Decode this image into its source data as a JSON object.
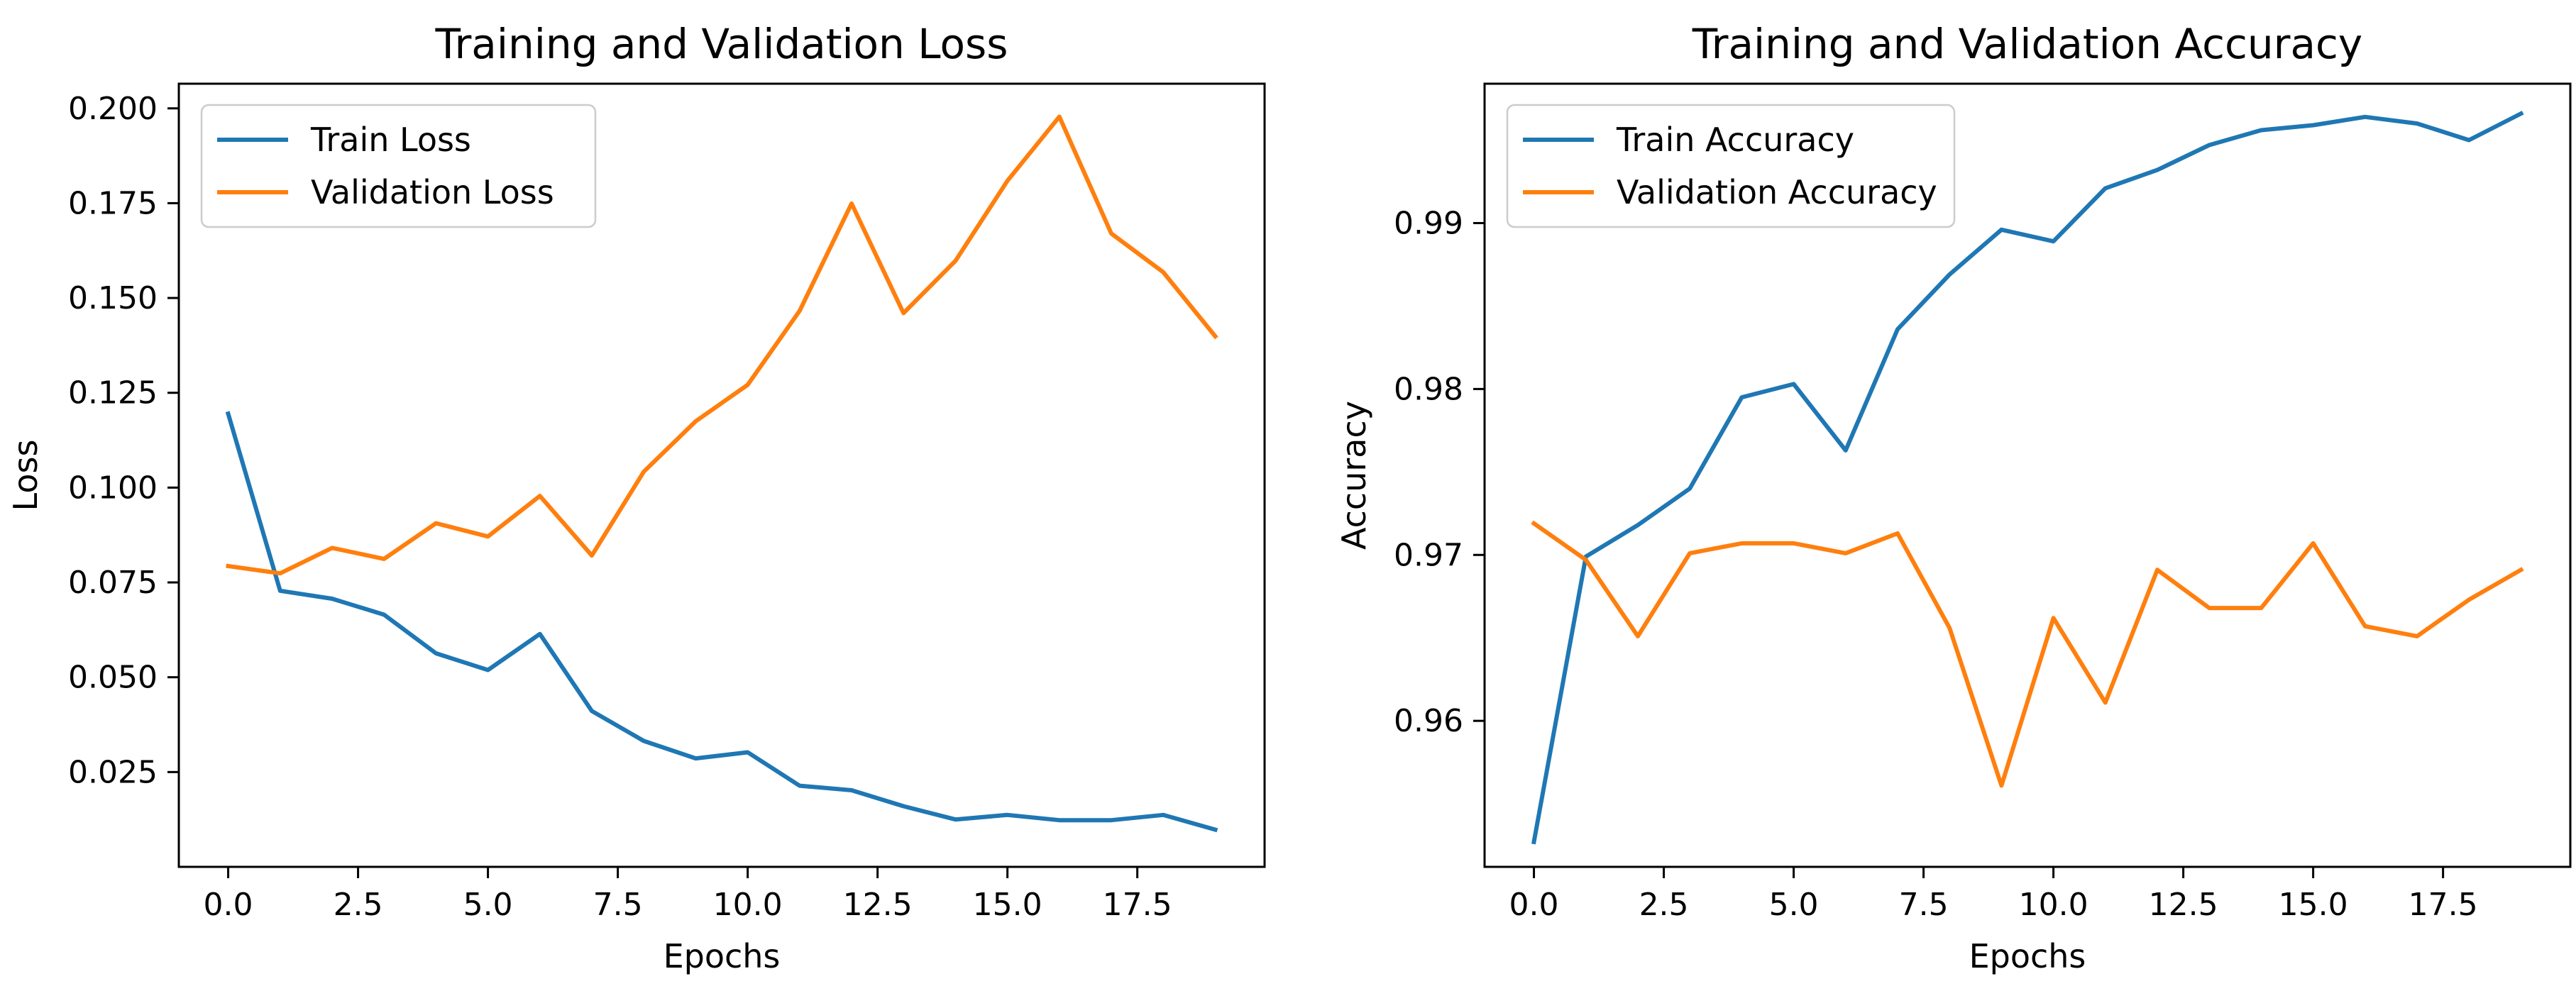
{
  "chart_data": [
    {
      "type": "line",
      "title": "Training and Validation Loss",
      "xlabel": "Epochs",
      "ylabel": "Loss",
      "xlim": [
        -0.95,
        19.95
      ],
      "ylim": [
        0.0,
        0.2065
      ],
      "xticks": [
        0.0,
        2.5,
        5.0,
        7.5,
        10.0,
        12.5,
        15.0,
        17.5
      ],
      "xtick_labels": [
        "0.0",
        "2.5",
        "5.0",
        "7.5",
        "10.0",
        "12.5",
        "15.0",
        "17.5"
      ],
      "yticks": [
        0.025,
        0.05,
        0.075,
        0.1,
        0.125,
        0.15,
        0.175,
        0.2
      ],
      "ytick_labels": [
        "0.025",
        "0.050",
        "0.075",
        "0.100",
        "0.125",
        "0.150",
        "0.175",
        "0.200"
      ],
      "legend_position": "top-left",
      "grid": false,
      "x": [
        0,
        1,
        2,
        3,
        4,
        5,
        6,
        7,
        8,
        9,
        10,
        11,
        12,
        13,
        14,
        15,
        16,
        17,
        18,
        19
      ],
      "series": [
        {
          "name": "Train Loss",
          "color": "#1f77b4",
          "values": [
            0.1195,
            0.0728,
            0.0707,
            0.0665,
            0.0563,
            0.0519,
            0.0614,
            0.0411,
            0.0332,
            0.0286,
            0.0302,
            0.0214,
            0.0202,
            0.016,
            0.0125,
            0.0137,
            0.0123,
            0.0123,
            0.0137,
            0.0098
          ]
        },
        {
          "name": "Validation Loss",
          "color": "#ff7f0e",
          "values": [
            0.0793,
            0.0774,
            0.0841,
            0.0812,
            0.0906,
            0.0871,
            0.0978,
            0.0821,
            0.1042,
            0.1175,
            0.1271,
            0.1466,
            0.1749,
            0.146,
            0.1598,
            0.1809,
            0.1978,
            0.167,
            0.1568,
            0.1399
          ]
        }
      ]
    },
    {
      "type": "line",
      "title": "Training and Validation Accuracy",
      "xlabel": "Epochs",
      "ylabel": "Accuracy",
      "xlim": [
        -0.95,
        19.95
      ],
      "ylim": [
        0.9512,
        0.9984
      ],
      "xticks": [
        0.0,
        2.5,
        5.0,
        7.5,
        10.0,
        12.5,
        15.0,
        17.5
      ],
      "xtick_labels": [
        "0.0",
        "2.5",
        "5.0",
        "7.5",
        "10.0",
        "12.5",
        "15.0",
        "17.5"
      ],
      "yticks": [
        0.96,
        0.97,
        0.98,
        0.99
      ],
      "ytick_labels": [
        "0.96",
        "0.97",
        "0.98",
        "0.99"
      ],
      "legend_position": "top-left",
      "grid": false,
      "x": [
        0,
        1,
        2,
        3,
        4,
        5,
        6,
        7,
        8,
        9,
        10,
        11,
        12,
        13,
        14,
        15,
        16,
        17,
        18,
        19
      ],
      "series": [
        {
          "name": "Train Accuracy",
          "color": "#1f77b4",
          "values": [
            0.9527,
            0.9699,
            0.9718,
            0.974,
            0.9795,
            0.9803,
            0.9763,
            0.9836,
            0.9869,
            0.9896,
            0.9889,
            0.9921,
            0.9932,
            0.9947,
            0.9956,
            0.9959,
            0.9964,
            0.996,
            0.995,
            0.9966
          ]
        },
        {
          "name": "Validation Accuracy",
          "color": "#ff7f0e",
          "values": [
            0.9719,
            0.9697,
            0.9651,
            0.9701,
            0.9707,
            0.9707,
            0.9701,
            0.9713,
            0.9656,
            0.9561,
            0.9662,
            0.9611,
            0.9691,
            0.9668,
            0.9668,
            0.9707,
            0.9657,
            0.9651,
            0.9673,
            0.9691
          ]
        }
      ]
    }
  ]
}
